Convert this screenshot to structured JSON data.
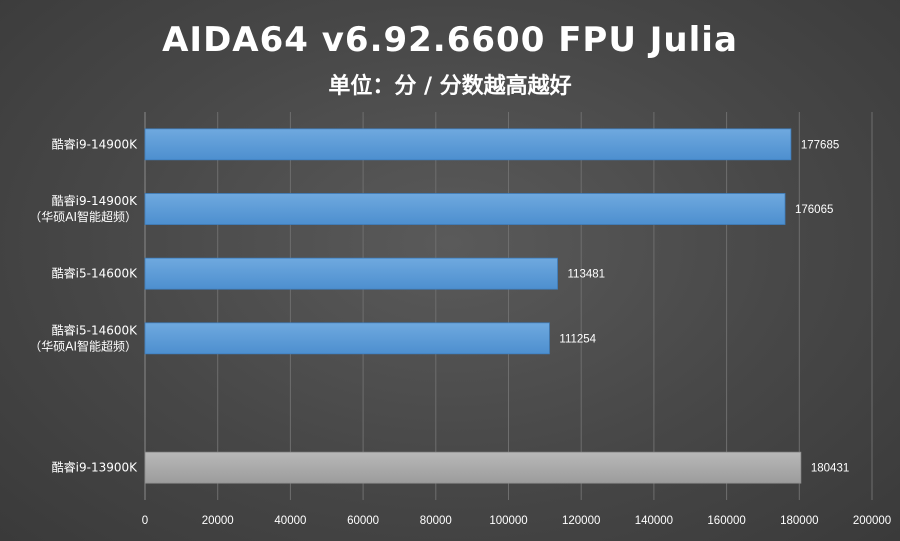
{
  "chart_data": {
    "type": "bar",
    "orientation": "horizontal",
    "title": "AIDA64 v6.92.6600 FPU Julia",
    "subtitle": "单位：分 / 分数越高越好",
    "categories": [
      [
        "酷睿i9-14900K"
      ],
      [
        "酷睿i9-14900K",
        "（华硕AI智能超频）"
      ],
      [
        "酷睿i5-14600K"
      ],
      [
        "酷睿i5-14600K",
        "（华硕AI智能超频）"
      ],
      [],
      [
        "酷睿i9-13900K"
      ]
    ],
    "values": [
      177685,
      176065,
      113481,
      111254,
      null,
      180431
    ],
    "data_labels": [
      "177685",
      "176065",
      "113481",
      "111254",
      "",
      "180431"
    ],
    "bar_colors": [
      "#5b9bd5",
      "#5b9bd5",
      "#5b9bd5",
      "#5b9bd5",
      "",
      "#a6a6a6"
    ],
    "xlim": [
      0,
      200000
    ],
    "x_ticks": [
      0,
      20000,
      40000,
      60000,
      80000,
      100000,
      120000,
      140000,
      160000,
      180000,
      200000
    ],
    "x_tick_labels": [
      "0",
      "20000",
      "40000",
      "60000",
      "80000",
      "100000",
      "120000",
      "140000",
      "160000",
      "180000",
      "200000"
    ],
    "grid": true,
    "legend": "none"
  }
}
